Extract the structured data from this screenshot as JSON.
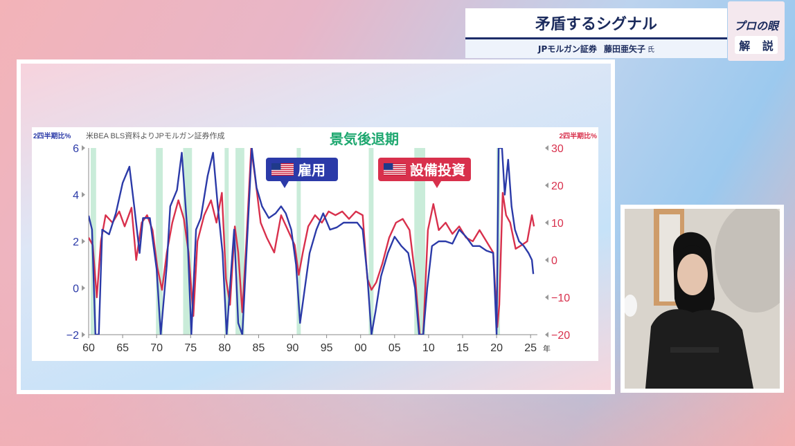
{
  "header": {
    "title": "矛盾するシグナル",
    "speaker_org": "JPモルガン証券",
    "speaker_name": "藤田亜矢子",
    "speaker_honorific": "氏"
  },
  "badge": {
    "logo_text": "プロの眼",
    "button_label": "解 説"
  },
  "chart_data": {
    "type": "line",
    "title": "景気後退期",
    "source_note": "米BEA BLS資料よりJPモルガン証券作成",
    "ylabel_left": "2四半期比%",
    "ylabel_right": "2四半期比%",
    "x_unit": "年",
    "x_ticks": [
      "60",
      "65",
      "70",
      "75",
      "80",
      "85",
      "90",
      "95",
      "00",
      "05",
      "10",
      "15",
      "20",
      "25"
    ],
    "x_tick_years": [
      1960,
      1965,
      1970,
      1975,
      1980,
      1985,
      1990,
      1995,
      2000,
      2005,
      2010,
      2015,
      2020,
      2025
    ],
    "xlim": [
      1960,
      2026
    ],
    "ylim_left": [
      -2,
      6
    ],
    "yticks_left": [
      "−2",
      "0",
      "2",
      "4",
      "6"
    ],
    "ylim_right": [
      -20,
      30
    ],
    "yticks_right": [
      "−20",
      "−10",
      "0",
      "10",
      "20",
      "30"
    ],
    "recession_color": "#c9ecd9",
    "recessions": [
      [
        1960.3,
        1961.1
      ],
      [
        1969.9,
        1970.9
      ],
      [
        1973.9,
        1975.2
      ],
      [
        1980.0,
        1980.6
      ],
      [
        1981.6,
        1982.9
      ],
      [
        1990.6,
        1991.2
      ],
      [
        2001.2,
        2001.9
      ],
      [
        2007.9,
        2009.5
      ],
      [
        2020.0,
        2020.5
      ]
    ],
    "series": [
      {
        "name": "雇用",
        "axis": "left",
        "color": "#2b3aa8",
        "x": [
          1960,
          1960.5,
          1961,
          1961.5,
          1962,
          1963,
          1964,
          1965,
          1966,
          1966.7,
          1967.5,
          1968,
          1969,
          1970,
          1970.6,
          1971.5,
          1972,
          1973,
          1973.7,
          1974.5,
          1975.1,
          1975.8,
          1976.5,
          1977.5,
          1978.3,
          1979,
          1979.7,
          1980.3,
          1980.9,
          1981.4,
          1982,
          1982.6,
          1983.3,
          1984,
          1984.7,
          1985.5,
          1986.5,
          1987.5,
          1988.3,
          1989,
          1989.8,
          1990.5,
          1991.1,
          1991.8,
          1992.5,
          1993.5,
          1994.5,
          1995.5,
          1996.5,
          1997.5,
          1998.5,
          1999.5,
          2000.3,
          2001,
          2001.6,
          2002.2,
          2003,
          2004,
          2005,
          2006,
          2007,
          2008,
          2008.6,
          2009.2,
          2009.8,
          2010.5,
          2011.5,
          2012.5,
          2013.5,
          2014.5,
          2015.5,
          2016.5,
          2017.5,
          2018.5,
          2019.5,
          2020,
          2020.3,
          2020.8,
          2021.2,
          2021.7,
          2022.2,
          2022.7,
          2023.3,
          2024,
          2024.7,
          2025.2,
          2025.4
        ],
        "values": [
          3.1,
          2.5,
          -2.0,
          -2.0,
          2.5,
          2.3,
          3.2,
          4.5,
          5.2,
          3.5,
          1.5,
          3.0,
          3.0,
          0.8,
          -2.0,
          1.0,
          3.5,
          4.2,
          5.8,
          2.5,
          -2.0,
          2.5,
          3.0,
          4.8,
          5.8,
          3.5,
          1.5,
          -2.0,
          0.5,
          2.5,
          -1.5,
          -2.0,
          2.0,
          6.0,
          4.3,
          3.5,
          3.0,
          3.2,
          3.5,
          3.2,
          2.5,
          1.0,
          -1.5,
          0.0,
          1.5,
          2.5,
          3.2,
          2.5,
          2.6,
          2.8,
          2.8,
          2.8,
          2.5,
          0.5,
          -2.0,
          -1.0,
          0.5,
          1.5,
          2.2,
          1.8,
          1.5,
          0.0,
          -2.0,
          -2.0,
          0.0,
          1.8,
          2.0,
          2.0,
          1.9,
          2.5,
          2.2,
          1.8,
          1.8,
          1.6,
          1.5,
          -2.0,
          6.0,
          6.0,
          4.0,
          5.5,
          3.5,
          2.5,
          2.0,
          1.8,
          1.5,
          1.2,
          0.6
        ]
      },
      {
        "name": "設備投資",
        "axis": "right",
        "color": "#d8304c",
        "x": [
          1960,
          1960.6,
          1961.2,
          1961.8,
          1962.5,
          1963.5,
          1964.5,
          1965.3,
          1966.3,
          1967,
          1967.8,
          1968.6,
          1969.4,
          1970.1,
          1970.8,
          1971.5,
          1972.3,
          1973.2,
          1974,
          1974.7,
          1975.4,
          1976,
          1977,
          1978,
          1978.8,
          1979.6,
          1980.2,
          1980.8,
          1981.5,
          1982,
          1982.6,
          1983.2,
          1983.9,
          1984.5,
          1985.3,
          1986.2,
          1987.3,
          1988.3,
          1989.3,
          1990.3,
          1990.9,
          1991.5,
          1992.3,
          1993.3,
          1994.3,
          1995.3,
          1996.3,
          1997.3,
          1998.3,
          1999.3,
          2000.3,
          2001,
          2001.6,
          2002.3,
          2003.2,
          2004.2,
          2005.2,
          2006.2,
          2007.2,
          2008,
          2008.7,
          2009.2,
          2009.9,
          2010.7,
          2011.5,
          2012.5,
          2013.5,
          2014.5,
          2015.5,
          2016.5,
          2017.5,
          2018.5,
          2019.5,
          2020.1,
          2020.4,
          2020.9,
          2021.4,
          2022,
          2022.8,
          2023.7,
          2024.5,
          2025.2,
          2025.5
        ],
        "values": [
          6,
          4,
          -10,
          5,
          12,
          10,
          13,
          9,
          14,
          0,
          10,
          12,
          8,
          -2,
          -8,
          2,
          10,
          16,
          11,
          2,
          -15,
          5,
          12,
          16,
          10,
          18,
          -5,
          -12,
          9,
          2,
          -14,
          5,
          30,
          22,
          10,
          6,
          2,
          12,
          8,
          4,
          -4,
          2,
          9,
          12,
          10,
          13,
          12,
          13,
          11,
          13,
          12,
          -5,
          -8,
          -6,
          -1,
          6,
          10,
          11,
          8,
          -4,
          -20,
          -20,
          8,
          15,
          8,
          10,
          7,
          9,
          6,
          5,
          8,
          5,
          2,
          -18,
          -12,
          18,
          12,
          10,
          3,
          4,
          5,
          12,
          9
        ]
      }
    ],
    "annotations": [
      {
        "label": "雇用",
        "flag": "us-flag-icon",
        "color": "#2b3aa8"
      },
      {
        "label": "設備投資",
        "flag": "us-flag-icon",
        "color": "#d8304c"
      }
    ]
  }
}
